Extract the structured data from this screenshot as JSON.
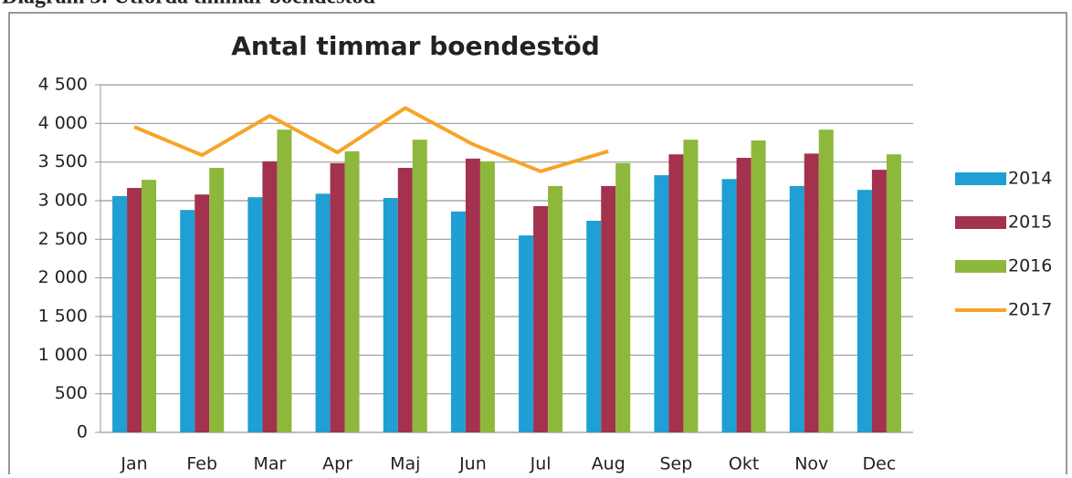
{
  "chart_data": {
    "type": "bar",
    "caption": "Diagram 3: Utförda timmar boendestöd",
    "title": "Antal timmar boendestöd",
    "categories": [
      "Jan",
      "Feb",
      "Mar",
      "Apr",
      "Maj",
      "Jun",
      "Jul",
      "Aug",
      "Sep",
      "Okt",
      "Nov",
      "Dec"
    ],
    "series": [
      {
        "name": "2014",
        "type": "bar",
        "color": "#1f9fd4",
        "values": [
          3060,
          2880,
          3045,
          3090,
          3035,
          2860,
          2550,
          2740,
          3330,
          3280,
          3190,
          3140
        ]
      },
      {
        "name": "2015",
        "type": "bar",
        "color": "#a3324f",
        "values": [
          3165,
          3080,
          3510,
          3485,
          3425,
          3545,
          2930,
          3190,
          3600,
          3555,
          3610,
          3400
        ]
      },
      {
        "name": "2016",
        "type": "bar",
        "color": "#8db83b",
        "values": [
          3270,
          3425,
          3920,
          3640,
          3790,
          3510,
          3190,
          3485,
          3790,
          3780,
          3920,
          3600
        ]
      },
      {
        "name": "2017",
        "type": "line",
        "color": "#f7a428",
        "values": [
          3955,
          3590,
          4100,
          3625,
          4200,
          3730,
          3380,
          3640,
          null,
          null,
          null,
          null
        ]
      }
    ],
    "ylim": [
      0,
      4500
    ],
    "yticks": [
      0,
      500,
      {
        "value": 1000,
        "label": "1 000"
      },
      {
        "value": 1500,
        "label": "1 500"
      },
      {
        "value": 2000,
        "label": "2 000"
      },
      {
        "value": 2500,
        "label": "2 500"
      },
      {
        "value": 3000,
        "label": "3 000"
      },
      {
        "value": 3500,
        "label": "3 500"
      },
      {
        "value": 4000,
        "label": "4 000"
      },
      {
        "value": 4500,
        "label": "4 500"
      }
    ],
    "grid": true,
    "legend": "right"
  }
}
